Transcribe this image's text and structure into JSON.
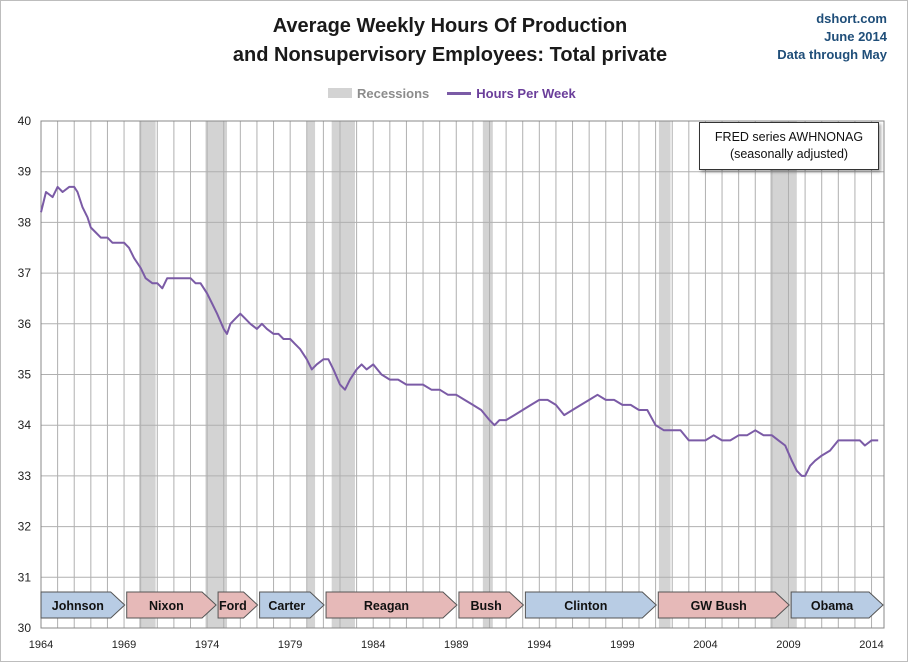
{
  "header": {
    "title_line1": "Average Weekly Hours Of Production",
    "title_line2": "and Nonsupervisory Employees: Total private",
    "source_line1": "dshort.com",
    "source_line2": "June 2014",
    "source_line3": "Data through May"
  },
  "legend": {
    "recessions_label": "Recessions",
    "series_label": "Hours Per Week",
    "recession_color": "#d3d3d3",
    "series_color": "#7b5ba6"
  },
  "annotation": {
    "line1": "FRED series  AWHNONAG",
    "line2": "(seasonally adjusted)"
  },
  "chart_data": {
    "type": "line",
    "title": "Average Weekly Hours Of Production and Nonsupervisory Employees: Total private",
    "xlabel": "",
    "ylabel": "",
    "xlim": [
      1964,
      2014.75
    ],
    "ylim": [
      30,
      40
    ],
    "x_ticks": [
      "1964",
      "1969",
      "1974",
      "1979",
      "1984",
      "1989",
      "1994",
      "1999",
      "2004",
      "2009",
      "2014"
    ],
    "y_ticks": [
      "30",
      "31",
      "32",
      "33",
      "34",
      "35",
      "36",
      "37",
      "38",
      "39",
      "40"
    ],
    "grid": true,
    "legend_position": "top-center",
    "series": [
      {
        "name": "Hours Per Week",
        "x": [
          1964.0,
          1964.3,
          1964.7,
          1965.0,
          1965.3,
          1965.7,
          1966.0,
          1966.2,
          1966.5,
          1966.8,
          1967.0,
          1967.3,
          1967.6,
          1968.0,
          1968.3,
          1968.6,
          1969.0,
          1969.3,
          1969.6,
          1970.0,
          1970.3,
          1970.7,
          1971.0,
          1971.3,
          1971.6,
          1972.0,
          1972.3,
          1972.6,
          1973.0,
          1973.3,
          1973.6,
          1974.0,
          1974.3,
          1974.6,
          1975.0,
          1975.2,
          1975.4,
          1975.7,
          1976.0,
          1976.3,
          1976.6,
          1977.0,
          1977.3,
          1977.6,
          1978.0,
          1978.3,
          1978.6,
          1979.0,
          1979.3,
          1979.6,
          1980.0,
          1980.3,
          1980.6,
          1981.0,
          1981.3,
          1981.6,
          1982.0,
          1982.3,
          1982.6,
          1983.0,
          1983.3,
          1983.6,
          1984.0,
          1984.5,
          1985.0,
          1985.5,
          1986.0,
          1986.5,
          1987.0,
          1987.5,
          1988.0,
          1988.5,
          1989.0,
          1989.5,
          1990.0,
          1990.5,
          1991.0,
          1991.3,
          1991.6,
          1992.0,
          1992.5,
          1993.0,
          1993.5,
          1994.0,
          1994.5,
          1995.0,
          1995.5,
          1996.0,
          1996.5,
          1997.0,
          1997.5,
          1998.0,
          1998.5,
          1999.0,
          1999.5,
          2000.0,
          2000.5,
          2001.0,
          2001.5,
          2002.0,
          2002.5,
          2003.0,
          2003.5,
          2004.0,
          2004.5,
          2005.0,
          2005.5,
          2006.0,
          2006.5,
          2007.0,
          2007.5,
          2008.0,
          2008.4,
          2008.8,
          2009.2,
          2009.5,
          2009.8,
          2010.0,
          2010.3,
          2010.6,
          2011.0,
          2011.5,
          2012.0,
          2012.5,
          2013.0,
          2013.3,
          2013.6,
          2014.0,
          2014.4
        ],
        "values": [
          38.2,
          38.6,
          38.5,
          38.7,
          38.6,
          38.7,
          38.7,
          38.6,
          38.3,
          38.1,
          37.9,
          37.8,
          37.7,
          37.7,
          37.6,
          37.6,
          37.6,
          37.5,
          37.3,
          37.1,
          36.9,
          36.8,
          36.8,
          36.7,
          36.9,
          36.9,
          36.9,
          36.9,
          36.9,
          36.8,
          36.8,
          36.6,
          36.4,
          36.2,
          35.9,
          35.8,
          36.0,
          36.1,
          36.2,
          36.1,
          36.0,
          35.9,
          36.0,
          35.9,
          35.8,
          35.8,
          35.7,
          35.7,
          35.6,
          35.5,
          35.3,
          35.1,
          35.2,
          35.3,
          35.3,
          35.1,
          34.8,
          34.7,
          34.9,
          35.1,
          35.2,
          35.1,
          35.2,
          35.0,
          34.9,
          34.9,
          34.8,
          34.8,
          34.8,
          34.7,
          34.7,
          34.6,
          34.6,
          34.5,
          34.4,
          34.3,
          34.1,
          34.0,
          34.1,
          34.1,
          34.2,
          34.3,
          34.4,
          34.5,
          34.5,
          34.4,
          34.2,
          34.3,
          34.4,
          34.5,
          34.6,
          34.5,
          34.5,
          34.4,
          34.4,
          34.3,
          34.3,
          34.0,
          33.9,
          33.9,
          33.9,
          33.7,
          33.7,
          33.7,
          33.8,
          33.7,
          33.7,
          33.8,
          33.8,
          33.9,
          33.8,
          33.8,
          33.7,
          33.6,
          33.3,
          33.1,
          33.0,
          33.0,
          33.2,
          33.3,
          33.4,
          33.5,
          33.7,
          33.7,
          33.7,
          33.7,
          33.6,
          33.7,
          33.7
        ]
      }
    ],
    "recessions": [
      [
        1969.9,
        1970.9
      ],
      [
        1973.9,
        1975.2
      ],
      [
        1980.0,
        1980.5
      ],
      [
        1981.5,
        1982.9
      ],
      [
        1990.6,
        1991.2
      ],
      [
        2001.2,
        2001.9
      ],
      [
        2007.9,
        2009.5
      ]
    ],
    "presidents": [
      {
        "name": "Johnson",
        "start": 1964.0,
        "end": 1969.1,
        "party": "D"
      },
      {
        "name": "Nixon",
        "start": 1969.1,
        "end": 1974.6,
        "party": "R"
      },
      {
        "name": "Ford",
        "start": 1974.6,
        "end": 1977.1,
        "party": "R"
      },
      {
        "name": "Carter",
        "start": 1977.1,
        "end": 1981.1,
        "party": "D"
      },
      {
        "name": "Reagan",
        "start": 1981.1,
        "end": 1989.1,
        "party": "R"
      },
      {
        "name": "Bush",
        "start": 1989.1,
        "end": 1993.1,
        "party": "R"
      },
      {
        "name": "Clinton",
        "start": 1993.1,
        "end": 2001.1,
        "party": "D"
      },
      {
        "name": "GW Bush",
        "start": 2001.1,
        "end": 2009.1,
        "party": "R"
      },
      {
        "name": "Obama",
        "start": 2009.1,
        "end": 2014.75,
        "party": "D"
      }
    ],
    "party_colors": {
      "D": "#b8cce4",
      "R": "#e6b9b8"
    }
  }
}
